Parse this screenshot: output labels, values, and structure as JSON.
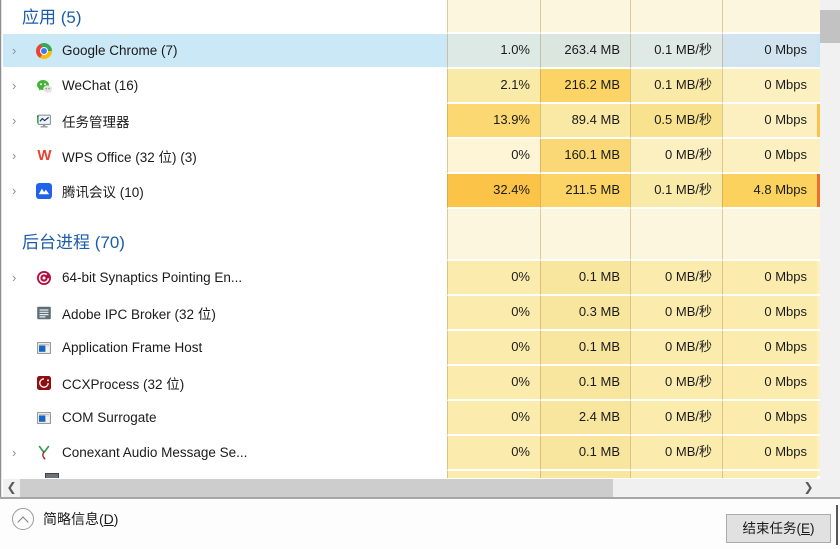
{
  "theme": {
    "group_header_color": "#1c5da8",
    "selection_bg": "#cbe8f6",
    "heat_empty": "#fdf6de",
    "scrollbar_track": "#f0f0f0",
    "scrollbar_thumb": "#c9c9c9"
  },
  "table": {
    "groups": [
      {
        "header": "应用 (5)",
        "rows": [
          {
            "label": "Google Chrome (7)",
            "icon": "chrome",
            "expandable": true,
            "selected": true,
            "cpu": "1.0%",
            "mem": "263.4 MB",
            "disk": "0.1 MB/秒",
            "net": "0 Mbps",
            "colors": {
              "cpu": "#dde9e4",
              "mem": "#dbe7de",
              "disk": "#dfe9e6",
              "net": "#d2e4f0",
              "row": "#cbe8f6",
              "sliver": "#c8e4f6"
            }
          },
          {
            "label": "WeChat (16)",
            "icon": "wechat",
            "expandable": true,
            "selected": false,
            "cpu": "2.1%",
            "mem": "216.2 MB",
            "disk": "0.1 MB/秒",
            "net": "0 Mbps",
            "colors": {
              "cpu": "#faeaa8",
              "mem": "#fcd466",
              "disk": "#faeaa8",
              "net": "#fcf0c0",
              "sliver": "#fcf0c0"
            }
          },
          {
            "label": "任务管理器",
            "icon": "taskmgr",
            "expandable": true,
            "selected": false,
            "cpu": "13.9%",
            "mem": "89.4 MB",
            "disk": "0.5 MB/秒",
            "net": "0 Mbps",
            "colors": {
              "cpu": "#fcd873",
              "mem": "#fae9a4",
              "disk": "#f9e28e",
              "net": "#fcf0c0",
              "sliver": "#fbc34d"
            }
          },
          {
            "label": "WPS Office (32 位) (3)",
            "icon": "wps",
            "expandable": true,
            "selected": false,
            "cpu": "0%",
            "mem": "160.1 MB",
            "disk": "0 MB/秒",
            "net": "0 Mbps",
            "colors": {
              "cpu": "#fdf5d6",
              "mem": "#fbd876",
              "disk": "#fcf0c0",
              "net": "#fcf0c0",
              "sliver": "#fcf0c0"
            }
          },
          {
            "label": "腾讯会议 (10)",
            "icon": "tencent",
            "expandable": true,
            "selected": false,
            "cpu": "32.4%",
            "mem": "211.5 MB",
            "disk": "0.1 MB/秒",
            "net": "4.8 Mbps",
            "colors": {
              "cpu": "#fbc348",
              "mem": "#fcd466",
              "disk": "#faeaa8",
              "net": "#fbd25e",
              "sliver": "#ec6f2d"
            }
          }
        ]
      },
      {
        "header": "后台进程 (70)",
        "rows": [
          {
            "label": "64-bit Synaptics Pointing En...",
            "icon": "synaptics",
            "expandable": true,
            "selected": false,
            "cpu": "0%",
            "mem": "0.1 MB",
            "disk": "0 MB/秒",
            "net": "0 Mbps",
            "colors": {
              "cpu": "#fbecae",
              "mem": "#f8e59e",
              "disk": "#fbecae",
              "net": "#fbecae",
              "sliver": "#fcf0c0"
            }
          },
          {
            "label": "Adobe IPC Broker (32 位)",
            "icon": "adobe",
            "expandable": false,
            "selected": false,
            "cpu": "0%",
            "mem": "0.3 MB",
            "disk": "0 MB/秒",
            "net": "0 Mbps",
            "colors": {
              "cpu": "#fbecae",
              "mem": "#f8e59e",
              "disk": "#fbecae",
              "net": "#fbecae",
              "sliver": "#fcf0c0"
            }
          },
          {
            "label": "Application Frame Host",
            "icon": "window",
            "expandable": false,
            "selected": false,
            "cpu": "0%",
            "mem": "0.1 MB",
            "disk": "0 MB/秒",
            "net": "0 Mbps",
            "colors": {
              "cpu": "#fbecae",
              "mem": "#f8e59e",
              "disk": "#fbecae",
              "net": "#fbecae",
              "sliver": "#fcf0c0"
            }
          },
          {
            "label": "CCXProcess (32 位)",
            "icon": "ccx",
            "expandable": false,
            "selected": false,
            "cpu": "0%",
            "mem": "0.1 MB",
            "disk": "0 MB/秒",
            "net": "0 Mbps",
            "colors": {
              "cpu": "#fbecae",
              "mem": "#f8e59e",
              "disk": "#fbecae",
              "net": "#fbecae",
              "sliver": "#fcf0c0"
            }
          },
          {
            "label": "COM Surrogate",
            "icon": "window",
            "expandable": false,
            "selected": false,
            "cpu": "0%",
            "mem": "2.4 MB",
            "disk": "0 MB/秒",
            "net": "0 Mbps",
            "colors": {
              "cpu": "#fbecae",
              "mem": "#f8e59e",
              "disk": "#fbecae",
              "net": "#fbecae",
              "sliver": "#fcf0c0"
            }
          },
          {
            "label": "Conexant Audio Message Se...",
            "icon": "conexant",
            "expandable": true,
            "selected": false,
            "cpu": "0%",
            "mem": "0.1 MB",
            "disk": "0 MB/秒",
            "net": "0 Mbps",
            "colors": {
              "cpu": "#fbecae",
              "mem": "#f8e59e",
              "disk": "#fbecae",
              "net": "#fbecae",
              "sliver": "#fcf0c0"
            }
          }
        ]
      }
    ],
    "partial_row_visible": true,
    "partial_row_colors": {
      "cpu": "#fbecae",
      "mem": "#f8e59e",
      "disk": "#fbecae",
      "net": "#fbecae",
      "sliver": "#fcf0c0"
    }
  },
  "footer": {
    "details_prefix": "简略信息(",
    "details_key": "D",
    "details_suffix": ")",
    "end_task_prefix": "结束任务(",
    "end_task_key": "E",
    "end_task_suffix": ")"
  }
}
